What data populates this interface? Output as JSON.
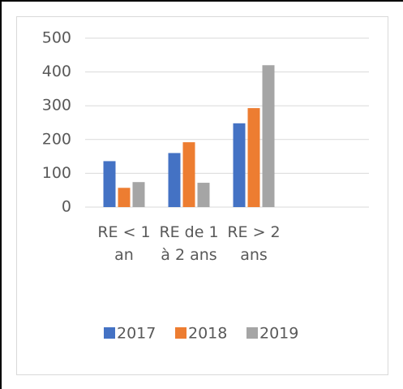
{
  "chart_data": {
    "type": "bar",
    "categories": [
      "RE < 1 an",
      "RE de 1 à 2 ans",
      "RE > 2 ans",
      null
    ],
    "series": [
      {
        "name": "2017",
        "color": "#4472c4",
        "values": [
          136,
          160,
          248,
          null
        ]
      },
      {
        "name": "2018",
        "color": "#ed7d31",
        "values": [
          57,
          192,
          293,
          null
        ]
      },
      {
        "name": "2019",
        "color": "#a5a5a5",
        "values": [
          74,
          72,
          420,
          null
        ]
      }
    ],
    "ylim": [
      0,
      500
    ],
    "yticks": [
      0,
      100,
      200,
      300,
      400,
      500
    ],
    "grid": true,
    "legend": "bottom"
  }
}
